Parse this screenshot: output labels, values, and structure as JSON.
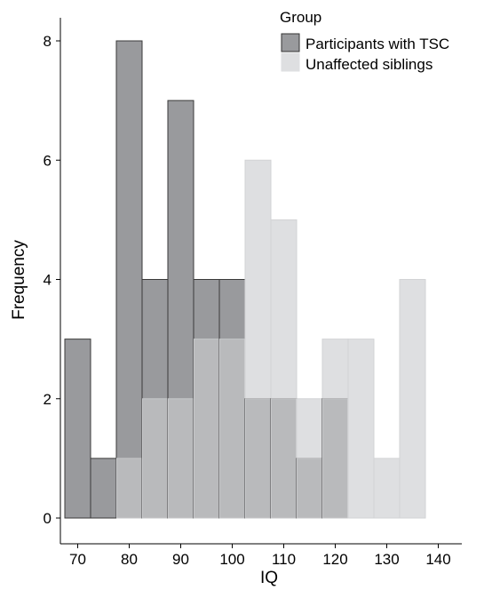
{
  "chart_data": {
    "type": "bar",
    "title": "",
    "xlabel": "IQ",
    "ylabel": "Frequency",
    "xlim": [
      65,
      140
    ],
    "ylim": [
      0,
      8
    ],
    "xticks": [
      70,
      80,
      90,
      100,
      110,
      120,
      130,
      140
    ],
    "yticks": [
      0,
      2,
      4,
      6,
      8
    ],
    "bin_width": 5,
    "bin_centers": [
      70,
      75,
      80,
      85,
      90,
      95,
      100,
      105,
      110,
      115,
      120,
      125,
      130,
      135
    ],
    "legend_title": "Group",
    "legend_position": "top-right",
    "grid": false,
    "series": [
      {
        "name": "Participants with TSC",
        "color": "#999a9d",
        "values": [
          3,
          1,
          8,
          4,
          7,
          4,
          4,
          2,
          2,
          1,
          2,
          0,
          0,
          0
        ]
      },
      {
        "name": "Unaffected siblings",
        "color": "#dedfe1",
        "values": [
          0,
          0,
          1,
          2,
          2,
          3,
          3,
          6,
          5,
          2,
          3,
          3,
          1,
          4
        ]
      }
    ],
    "overlap_color": "#b9babc"
  }
}
